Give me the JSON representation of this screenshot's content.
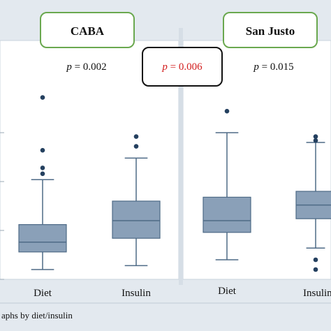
{
  "colors": {
    "box_fill": "#8aa0b8",
    "box_stroke": "#4e6a86",
    "whisker": "#4e6a86",
    "outlier": "#24405f",
    "panel_bg": "#ffffff",
    "panel_border": "#c9d3dc",
    "strip_bg": "#e3e9ef",
    "group_box_border": "#6aa84f",
    "highlight_box_border": "#111111",
    "highlight_text": "#d21c1c"
  },
  "footer": {
    "text": "aphs by diet/insulin"
  },
  "chart_data": {
    "type": "boxplot",
    "title": "",
    "xlabel": "",
    "ylabel": "",
    "ylim": [
      0,
      100
    ],
    "grid": false,
    "comparison": {
      "p_value": "p = 0.006",
      "p_symbol": "p",
      "p_text": " = 0.006",
      "highlighted": true
    },
    "panels": [
      {
        "label": "CABA",
        "p_value": {
          "p_symbol": "p",
          "p_text": " = 0.002"
        },
        "categories": [
          "Diet",
          "Insulin"
        ],
        "series": [
          {
            "category": "Diet",
            "whisker_low": 5,
            "q1": 14,
            "median": 19,
            "q3": 28,
            "whisker_high": 51,
            "outliers": [
              54,
              57,
              66,
              93
            ]
          },
          {
            "category": "Insulin",
            "whisker_low": 7,
            "q1": 21,
            "median": 30,
            "q3": 40,
            "whisker_high": 62,
            "outliers": [
              68,
              73
            ]
          }
        ]
      },
      {
        "label": "San Justo",
        "p_value": {
          "p_symbol": "p",
          "p_text": " = 0.015"
        },
        "categories": [
          "Diet",
          "Insulin"
        ],
        "series": [
          {
            "category": "Diet",
            "whisker_low": 10,
            "q1": 24,
            "median": 30,
            "q3": 42,
            "whisker_high": 75,
            "outliers": [
              86
            ]
          },
          {
            "category": "Insulin",
            "whisker_low": 16,
            "q1": 31,
            "median": 38,
            "q3": 45,
            "whisker_high": 70,
            "outliers": [
              5,
              10,
              71,
              73
            ]
          }
        ]
      }
    ]
  }
}
